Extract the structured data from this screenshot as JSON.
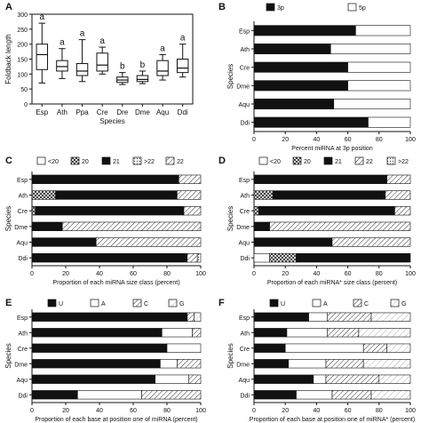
{
  "chart_data": [
    {
      "panel": "A",
      "type": "box",
      "ylabel": "Foldback length",
      "xlabel": "Species",
      "ylim": [
        0,
        300
      ],
      "yticks": [
        0,
        50,
        100,
        150,
        200,
        250,
        300
      ],
      "categories": [
        "Esp",
        "Ath",
        "Ppa",
        "Cre",
        "Dre",
        "Dme",
        "Aqu",
        "Ddi"
      ],
      "boxes": [
        {
          "min": 70,
          "q1": 115,
          "median": 165,
          "q3": 200,
          "max": 270
        },
        {
          "min": 85,
          "q1": 110,
          "median": 125,
          "q3": 145,
          "max": 185
        },
        {
          "min": 75,
          "q1": 95,
          "median": 110,
          "q3": 135,
          "max": 215
        },
        {
          "min": 100,
          "q1": 110,
          "median": 130,
          "q3": 170,
          "max": 190
        },
        {
          "min": 65,
          "q1": 72,
          "median": 80,
          "q3": 90,
          "max": 105
        },
        {
          "min": 68,
          "q1": 75,
          "median": 82,
          "q3": 95,
          "max": 110
        },
        {
          "min": 80,
          "q1": 95,
          "median": 110,
          "q3": 145,
          "max": 165
        },
        {
          "min": 90,
          "q1": 105,
          "median": 120,
          "q3": 150,
          "max": 200
        }
      ],
      "annotations": [
        "a",
        "a",
        "a",
        "a",
        "b",
        "b",
        "a",
        "a"
      ]
    },
    {
      "panel": "B",
      "type": "stacked-bar-horizontal",
      "ylabel": "Species",
      "xlabel": "Percent miRNA at 3p position",
      "xlim": [
        0,
        100
      ],
      "xticks": [
        0,
        20,
        40,
        60,
        80,
        100
      ],
      "categories": [
        "Esp",
        "Ath",
        "Cre",
        "Dme",
        "Aqu",
        "Ddi"
      ],
      "legend": [
        "3p",
        "5p"
      ],
      "series": [
        {
          "name": "3p",
          "values": [
            65,
            49,
            60,
            60,
            51,
            73
          ]
        },
        {
          "name": "5p",
          "values": [
            35,
            51,
            40,
            40,
            49,
            27
          ]
        }
      ]
    },
    {
      "panel": "C",
      "type": "stacked-bar-horizontal",
      "ylabel": "Species",
      "xlabel": "Proportion of each miRNA size class (percent)",
      "xlim": [
        0,
        100
      ],
      "xticks": [
        0,
        20,
        40,
        60,
        80,
        100
      ],
      "categories": [
        "Esp",
        "Ath",
        "Cre",
        "Dme",
        "Aqu",
        "Ddi"
      ],
      "legend": [
        "<20",
        "20",
        "21",
        ">22",
        "22"
      ],
      "series": [
        {
          "name": "<20",
          "values": [
            0,
            0,
            0,
            0,
            0,
            0
          ]
        },
        {
          "name": "20",
          "values": [
            0,
            14,
            2,
            0,
            0,
            0
          ]
        },
        {
          "name": "21",
          "values": [
            87,
            72,
            88,
            18,
            38,
            92
          ]
        },
        {
          "name": "22",
          "values": [
            13,
            14,
            10,
            82,
            62,
            6
          ]
        },
        {
          "name": ">22",
          "values": [
            0,
            0,
            0,
            0,
            0,
            2
          ]
        }
      ]
    },
    {
      "panel": "D",
      "type": "stacked-bar-horizontal",
      "ylabel": "Species",
      "xlabel": "Proportion of each miRNA* size class (percent)",
      "xlim": [
        0,
        100
      ],
      "xticks": [
        0,
        20,
        40,
        60,
        80,
        100
      ],
      "categories": [
        "Esp",
        "Ath",
        "Cre",
        "Dme",
        "Aqu",
        "Ddi"
      ],
      "legend": [
        "<20",
        "20",
        "21",
        "22",
        ">22"
      ],
      "series": [
        {
          "name": "<20",
          "values": [
            0,
            0,
            0,
            0,
            0,
            10
          ]
        },
        {
          "name": "20",
          "values": [
            0,
            12,
            3,
            0,
            0,
            17
          ]
        },
        {
          "name": "21",
          "values": [
            85,
            72,
            87,
            10,
            50,
            73
          ]
        },
        {
          "name": "22",
          "values": [
            15,
            16,
            10,
            90,
            50,
            0
          ]
        },
        {
          "name": ">22",
          "values": [
            0,
            0,
            0,
            0,
            0,
            0
          ]
        }
      ]
    },
    {
      "panel": "E",
      "type": "stacked-bar-horizontal",
      "ylabel": "Species",
      "xlabel": "Proportion of each base at position one of miRNA (percent)",
      "xlim": [
        0,
        100
      ],
      "xticks": [
        0,
        20,
        40,
        60,
        80,
        100
      ],
      "categories": [
        "Esp",
        "Ath",
        "Cre",
        "Dme",
        "Aqu",
        "Ddi"
      ],
      "legend": [
        "U",
        "A",
        "C",
        "G"
      ],
      "series": [
        {
          "name": "U",
          "values": [
            92,
            77,
            80,
            76,
            73,
            27
          ]
        },
        {
          "name": "A",
          "values": [
            0,
            18,
            20,
            10,
            20,
            38
          ]
        },
        {
          "name": "C",
          "values": [
            4,
            5,
            0,
            14,
            7,
            35
          ]
        },
        {
          "name": "G",
          "values": [
            4,
            0,
            0,
            0,
            0,
            0
          ]
        }
      ]
    },
    {
      "panel": "F",
      "type": "stacked-bar-horizontal",
      "ylabel": "Species",
      "xlabel": "Proportion of each base at position one of miRNA* (percent)",
      "xlim": [
        0,
        100
      ],
      "xticks": [
        0,
        20,
        40,
        60,
        80,
        100
      ],
      "categories": [
        "Esp",
        "Ath",
        "Cre",
        "Dme",
        "Aqu",
        "Ddi"
      ],
      "legend": [
        "U",
        "A",
        "C",
        "G"
      ],
      "series": [
        {
          "name": "U",
          "values": [
            35,
            21,
            20,
            22,
            38,
            27
          ]
        },
        {
          "name": "A",
          "values": [
            12,
            26,
            50,
            24,
            8,
            23
          ]
        },
        {
          "name": "C",
          "values": [
            28,
            20,
            15,
            24,
            34,
            25
          ]
        },
        {
          "name": "G",
          "values": [
            25,
            33,
            15,
            30,
            20,
            25
          ]
        }
      ]
    }
  ],
  "colors": {
    "black": "#111111",
    "white": "#ffffff",
    "frame": "#111111"
  }
}
